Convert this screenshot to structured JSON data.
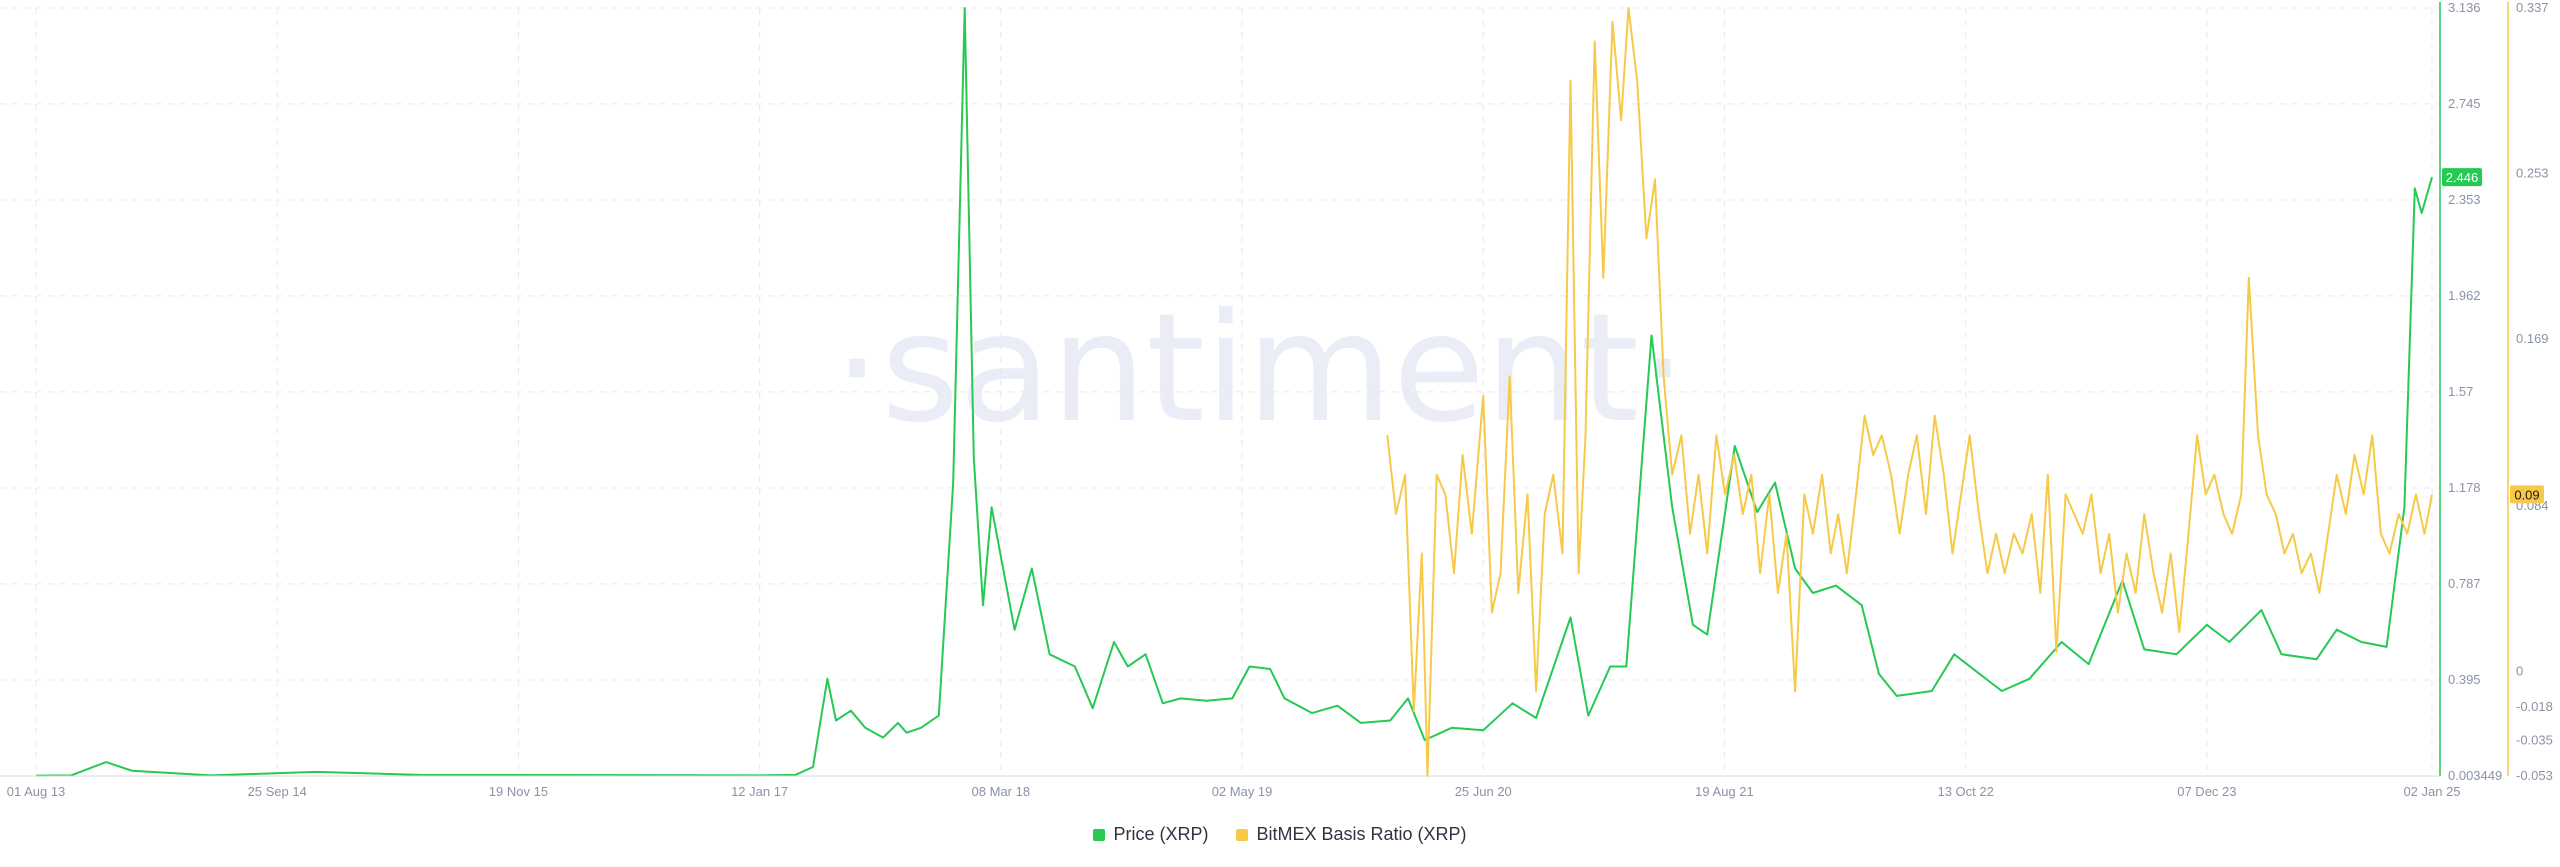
{
  "watermark": "·santiment·",
  "colors": {
    "price": "#26c953",
    "basis": "#f7c948",
    "grid": "#e6e8ee",
    "axis_text": "#8a93a6"
  },
  "chart_data": {
    "type": "line",
    "title": "",
    "x_ticks": [
      "01 Aug 13",
      "25 Sep 14",
      "19 Nov 15",
      "12 Jan 17",
      "08 Mar 18",
      "02 May 19",
      "25 Jun 20",
      "19 Aug 21",
      "13 Oct 22",
      "07 Dec 23",
      "02 Jan 25"
    ],
    "x_range": [
      "2013-08-01",
      "2025-01-02"
    ],
    "y_left": {
      "ticks": [
        "0.003449",
        "0.395",
        "0.787",
        "1.178",
        "1.57",
        "1.962",
        "2.353",
        "2.745",
        "3.136"
      ],
      "range": [
        0.003449,
        3.136
      ]
    },
    "y_right": {
      "ticks": [
        "-0.053",
        "-0.035",
        "-0.018",
        "0",
        "0.084",
        "0.169",
        "0.253",
        "0.337"
      ],
      "range": [
        -0.053,
        0.337
      ]
    },
    "current_values": {
      "price": "2.446",
      "basis": "0.09"
    },
    "series": [
      {
        "name": "Price (XRP)",
        "axis": "left",
        "points": [
          [
            "2013-08-01",
            0.005
          ],
          [
            "2013-10-01",
            0.006
          ],
          [
            "2013-12-01",
            0.06
          ],
          [
            "2014-01-15",
            0.025
          ],
          [
            "2014-06-01",
            0.006
          ],
          [
            "2014-12-01",
            0.02
          ],
          [
            "2015-06-01",
            0.008
          ],
          [
            "2016-06-01",
            0.007
          ],
          [
            "2017-01-12",
            0.006
          ],
          [
            "2017-03-15",
            0.008
          ],
          [
            "2017-04-15",
            0.04
          ],
          [
            "2017-05-10",
            0.4
          ],
          [
            "2017-05-25",
            0.23
          ],
          [
            "2017-06-20",
            0.27
          ],
          [
            "2017-07-15",
            0.2
          ],
          [
            "2017-08-15",
            0.16
          ],
          [
            "2017-09-10",
            0.22
          ],
          [
            "2017-09-25",
            0.18
          ],
          [
            "2017-10-20",
            0.2
          ],
          [
            "2017-11-20",
            0.25
          ],
          [
            "2017-12-15",
            1.2
          ],
          [
            "2018-01-04",
            3.136
          ],
          [
            "2018-01-20",
            1.3
          ],
          [
            "2018-02-05",
            0.7
          ],
          [
            "2018-02-20",
            1.1
          ],
          [
            "2018-04-01",
            0.6
          ],
          [
            "2018-05-01",
            0.85
          ],
          [
            "2018-06-01",
            0.5
          ],
          [
            "2018-07-15",
            0.45
          ],
          [
            "2018-08-15",
            0.28
          ],
          [
            "2018-09-21",
            0.55
          ],
          [
            "2018-10-15",
            0.45
          ],
          [
            "2018-11-15",
            0.5
          ],
          [
            "2018-12-15",
            0.3
          ],
          [
            "2019-01-15",
            0.32
          ],
          [
            "2019-03-01",
            0.31
          ],
          [
            "2019-04-15",
            0.32
          ],
          [
            "2019-05-15",
            0.45
          ],
          [
            "2019-06-20",
            0.44
          ],
          [
            "2019-07-15",
            0.32
          ],
          [
            "2019-09-01",
            0.26
          ],
          [
            "2019-10-15",
            0.29
          ],
          [
            "2019-11-25",
            0.22
          ],
          [
            "2020-01-15",
            0.23
          ],
          [
            "2020-02-15",
            0.32
          ],
          [
            "2020-03-15",
            0.15
          ],
          [
            "2020-05-01",
            0.2
          ],
          [
            "2020-06-25",
            0.19
          ],
          [
            "2020-08-15",
            0.3
          ],
          [
            "2020-09-25",
            0.24
          ],
          [
            "2020-11-24",
            0.65
          ],
          [
            "2020-12-25",
            0.25
          ],
          [
            "2021-02-01",
            0.45
          ],
          [
            "2021-03-01",
            0.45
          ],
          [
            "2021-04-14",
            1.8
          ],
          [
            "2021-05-20",
            1.1
          ],
          [
            "2021-06-25",
            0.62
          ],
          [
            "2021-07-20",
            0.58
          ],
          [
            "2021-09-06",
            1.35
          ],
          [
            "2021-10-15",
            1.08
          ],
          [
            "2021-11-15",
            1.2
          ],
          [
            "2021-12-20",
            0.85
          ],
          [
            "2022-01-20",
            0.75
          ],
          [
            "2022-03-01",
            0.78
          ],
          [
            "2022-04-15",
            0.7
          ],
          [
            "2022-05-15",
            0.42
          ],
          [
            "2022-06-15",
            0.33
          ],
          [
            "2022-08-15",
            0.35
          ],
          [
            "2022-09-23",
            0.5
          ],
          [
            "2022-10-15",
            0.46
          ],
          [
            "2022-12-15",
            0.35
          ],
          [
            "2023-02-01",
            0.4
          ],
          [
            "2023-03-29",
            0.55
          ],
          [
            "2023-05-15",
            0.46
          ],
          [
            "2023-07-13",
            0.8
          ],
          [
            "2023-08-20",
            0.52
          ],
          [
            "2023-10-15",
            0.5
          ],
          [
            "2023-12-07",
            0.62
          ],
          [
            "2024-01-15",
            0.55
          ],
          [
            "2024-03-11",
            0.68
          ],
          [
            "2024-04-15",
            0.5
          ],
          [
            "2024-06-15",
            0.48
          ],
          [
            "2024-07-20",
            0.6
          ],
          [
            "2024-09-01",
            0.55
          ],
          [
            "2024-10-15",
            0.53
          ],
          [
            "2024-11-15",
            1.1
          ],
          [
            "2024-12-03",
            2.4
          ],
          [
            "2024-12-15",
            2.3
          ],
          [
            "2025-01-02",
            2.446
          ]
        ]
      },
      {
        "name": "BitMEX Basis Ratio (XRP)",
        "axis": "right",
        "points": [
          [
            "2020-01-10",
            0.12
          ],
          [
            "2020-01-25",
            0.08
          ],
          [
            "2020-02-10",
            0.1
          ],
          [
            "2020-02-25",
            -0.02
          ],
          [
            "2020-03-10",
            0.06
          ],
          [
            "2020-03-20",
            -0.053
          ],
          [
            "2020-04-05",
            0.1
          ],
          [
            "2020-04-20",
            0.09
          ],
          [
            "2020-05-05",
            0.05
          ],
          [
            "2020-05-20",
            0.11
          ],
          [
            "2020-06-05",
            0.07
          ],
          [
            "2020-06-25",
            0.14
          ],
          [
            "2020-07-10",
            0.03
          ],
          [
            "2020-07-25",
            0.05
          ],
          [
            "2020-08-10",
            0.15
          ],
          [
            "2020-08-25",
            0.04
          ],
          [
            "2020-09-10",
            0.09
          ],
          [
            "2020-09-25",
            -0.01
          ],
          [
            "2020-10-10",
            0.08
          ],
          [
            "2020-10-25",
            0.1
          ],
          [
            "2020-11-10",
            0.06
          ],
          [
            "2020-11-24",
            0.3
          ],
          [
            "2020-12-08",
            0.05
          ],
          [
            "2020-12-20",
            0.12
          ],
          [
            "2021-01-05",
            0.32
          ],
          [
            "2021-01-20",
            0.2
          ],
          [
            "2021-02-05",
            0.33
          ],
          [
            "2021-02-20",
            0.28
          ],
          [
            "2021-03-05",
            0.337
          ],
          [
            "2021-03-20",
            0.3
          ],
          [
            "2021-04-05",
            0.22
          ],
          [
            "2021-04-20",
            0.25
          ],
          [
            "2021-05-05",
            0.15
          ],
          [
            "2021-05-20",
            0.1
          ],
          [
            "2021-06-05",
            0.12
          ],
          [
            "2021-06-20",
            0.07
          ],
          [
            "2021-07-05",
            0.1
          ],
          [
            "2021-07-20",
            0.06
          ],
          [
            "2021-08-05",
            0.12
          ],
          [
            "2021-08-20",
            0.09
          ],
          [
            "2021-09-05",
            0.11
          ],
          [
            "2021-09-20",
            0.08
          ],
          [
            "2021-10-05",
            0.1
          ],
          [
            "2021-10-20",
            0.05
          ],
          [
            "2021-11-05",
            0.09
          ],
          [
            "2021-11-20",
            0.04
          ],
          [
            "2021-12-05",
            0.07
          ],
          [
            "2021-12-20",
            -0.01
          ],
          [
            "2022-01-05",
            0.09
          ],
          [
            "2022-01-20",
            0.07
          ],
          [
            "2022-02-05",
            0.1
          ],
          [
            "2022-02-20",
            0.06
          ],
          [
            "2022-03-05",
            0.08
          ],
          [
            "2022-03-20",
            0.05
          ],
          [
            "2022-04-05",
            0.09
          ],
          [
            "2022-04-20",
            0.13
          ],
          [
            "2022-05-05",
            0.11
          ],
          [
            "2022-05-20",
            0.12
          ],
          [
            "2022-06-05",
            0.1
          ],
          [
            "2022-06-20",
            0.07
          ],
          [
            "2022-07-05",
            0.1
          ],
          [
            "2022-07-20",
            0.12
          ],
          [
            "2022-08-05",
            0.08
          ],
          [
            "2022-08-20",
            0.13
          ],
          [
            "2022-09-05",
            0.1
          ],
          [
            "2022-09-20",
            0.06
          ],
          [
            "2022-10-05",
            0.09
          ],
          [
            "2022-10-20",
            0.12
          ],
          [
            "2022-11-05",
            0.08
          ],
          [
            "2022-11-20",
            0.05
          ],
          [
            "2022-12-05",
            0.07
          ],
          [
            "2022-12-20",
            0.05
          ],
          [
            "2023-01-05",
            0.07
          ],
          [
            "2023-01-20",
            0.06
          ],
          [
            "2023-02-05",
            0.08
          ],
          [
            "2023-02-20",
            0.04
          ],
          [
            "2023-03-05",
            0.1
          ],
          [
            "2023-03-20",
            0.01
          ],
          [
            "2023-04-05",
            0.09
          ],
          [
            "2023-04-20",
            0.08
          ],
          [
            "2023-05-05",
            0.07
          ],
          [
            "2023-05-20",
            0.09
          ],
          [
            "2023-06-05",
            0.05
          ],
          [
            "2023-06-20",
            0.07
          ],
          [
            "2023-07-05",
            0.03
          ],
          [
            "2023-07-20",
            0.06
          ],
          [
            "2023-08-05",
            0.04
          ],
          [
            "2023-08-20",
            0.08
          ],
          [
            "2023-09-05",
            0.05
          ],
          [
            "2023-09-20",
            0.03
          ],
          [
            "2023-10-05",
            0.06
          ],
          [
            "2023-10-20",
            0.02
          ],
          [
            "2023-11-05",
            0.07
          ],
          [
            "2023-11-20",
            0.12
          ],
          [
            "2023-12-05",
            0.09
          ],
          [
            "2023-12-20",
            0.1
          ],
          [
            "2024-01-05",
            0.08
          ],
          [
            "2024-01-20",
            0.07
          ],
          [
            "2024-02-05",
            0.09
          ],
          [
            "2024-02-18",
            0.2
          ],
          [
            "2024-03-05",
            0.12
          ],
          [
            "2024-03-20",
            0.09
          ],
          [
            "2024-04-05",
            0.08
          ],
          [
            "2024-04-20",
            0.06
          ],
          [
            "2024-05-05",
            0.07
          ],
          [
            "2024-05-20",
            0.05
          ],
          [
            "2024-06-05",
            0.06
          ],
          [
            "2024-06-20",
            0.04
          ],
          [
            "2024-07-05",
            0.07
          ],
          [
            "2024-07-20",
            0.1
          ],
          [
            "2024-08-05",
            0.08
          ],
          [
            "2024-08-20",
            0.11
          ],
          [
            "2024-09-05",
            0.09
          ],
          [
            "2024-09-20",
            0.12
          ],
          [
            "2024-10-05",
            0.07
          ],
          [
            "2024-10-20",
            0.06
          ],
          [
            "2024-11-05",
            0.08
          ],
          [
            "2024-11-20",
            0.07
          ],
          [
            "2024-12-05",
            0.09
          ],
          [
            "2024-12-20",
            0.07
          ],
          [
            "2025-01-02",
            0.09
          ]
        ]
      }
    ],
    "legend": {
      "placement": "bottom-center",
      "items": [
        "Price (XRP)",
        "BitMEX Basis Ratio (XRP)"
      ]
    },
    "grid": true
  }
}
